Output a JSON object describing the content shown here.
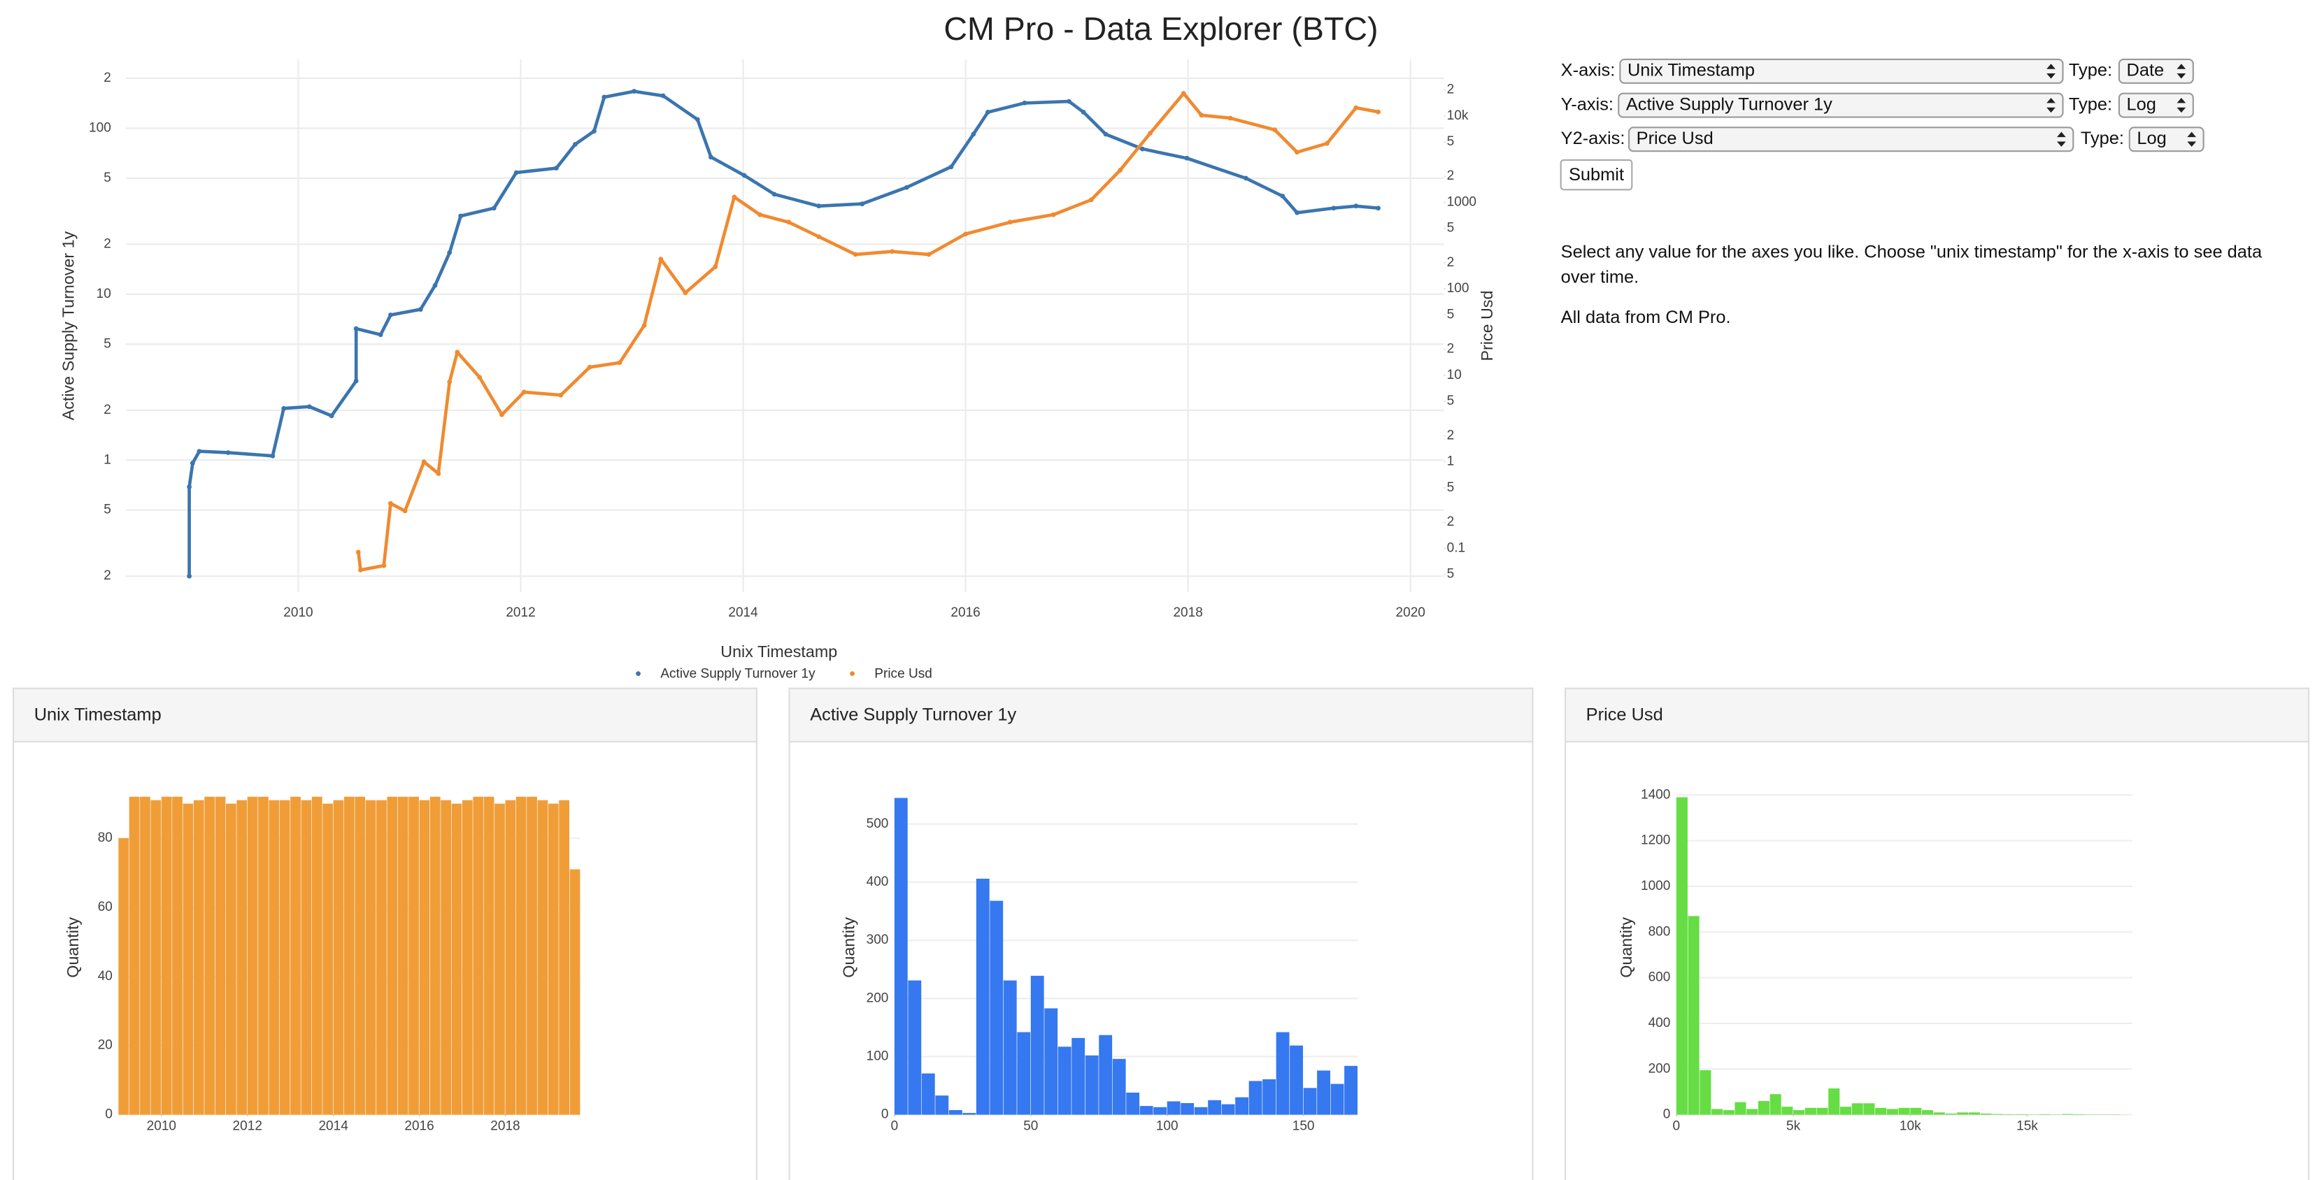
{
  "title": "CM Pro - Data Explorer (BTC)",
  "controls": {
    "x_axis": {
      "label": "X-axis:",
      "value": "Unix Timestamp",
      "type_label": "Type:",
      "type_value": "Date"
    },
    "y_axis": {
      "label": "Y-axis:",
      "value": "Active Supply Turnover 1y",
      "type_label": "Type:",
      "type_value": "Log"
    },
    "y2_axis": {
      "label": "Y2-axis:",
      "value": "Price Usd",
      "type_label": "Type:",
      "type_value": "Log"
    },
    "submit": "Submit",
    "paragraphs": [
      "Select any value for the axes you like. Choose \"unix timestamp\" for the x-axis to see data over time.",
      "All data from CM Pro."
    ]
  },
  "chart_data": [
    {
      "type": "scatter",
      "xlabel": "Unix Timestamp",
      "ylabel": "Active Supply Turnover 1y",
      "y2label": "Price Usd",
      "xlim": [
        2008.45,
        2020.3
      ],
      "xticks": [
        2010,
        2012,
        2014,
        2016,
        2018,
        2020
      ],
      "ylog": true,
      "ylim": [
        0.16,
        260
      ],
      "yticks": [
        {
          "value": 0.2,
          "label": "2"
        },
        {
          "value": 0.5,
          "label": "5"
        },
        1,
        2,
        5,
        10,
        {
          "value": 20,
          "label": "2"
        },
        {
          "value": 50,
          "label": "5"
        },
        100,
        {
          "value": 200,
          "label": "2"
        }
      ],
      "y2log": true,
      "y2lim": [
        0.031,
        45000
      ],
      "y2ticks": [
        {
          "value": 0.05,
          "label": "5"
        },
        0.1,
        {
          "value": 0.2,
          "label": "2"
        },
        {
          "value": 0.5,
          "label": "5"
        },
        1,
        {
          "value": 2,
          "label": "2"
        },
        {
          "value": 5,
          "label": "5"
        },
        10,
        {
          "value": 20,
          "label": "2"
        },
        {
          "value": 50,
          "label": "5"
        },
        100,
        {
          "value": 200,
          "label": "2"
        },
        {
          "value": 500,
          "label": "5"
        },
        1000,
        {
          "value": 2000,
          "label": "2"
        },
        {
          "value": 5000,
          "label": "5"
        },
        {
          "value": 10000,
          "label": "10k"
        },
        {
          "value": 20000,
          "label": "2"
        }
      ],
      "grid": true,
      "series": [
        {
          "name": "Active Supply Turnover 1y",
          "color": "#3b75af",
          "x": [
            2009.02,
            2009.02,
            2009.05,
            2009.11,
            2009.37,
            2009.77,
            2009.87,
            2010.1,
            2010.3,
            2010.52,
            2010.52,
            2010.74,
            2010.83,
            2011.1,
            2011.23,
            2011.36,
            2011.46,
            2011.76,
            2011.96,
            2012.32,
            2012.49,
            2012.66,
            2012.75,
            2013.02,
            2013.28,
            2013.59,
            2013.71,
            2014.01,
            2014.28,
            2014.68,
            2015.07,
            2015.47,
            2015.87,
            2016.07,
            2016.2,
            2016.53,
            2016.93,
            2017.06,
            2017.26,
            2017.59,
            2017.99,
            2018.52,
            2018.85,
            2018.98,
            2019.31,
            2019.51,
            2019.71
          ],
          "values": [
            0.2,
            0.69,
            0.96,
            1.13,
            1.11,
            1.06,
            2.05,
            2.1,
            1.85,
            3.0,
            6.2,
            5.7,
            7.5,
            8.1,
            11.3,
            17.8,
            29.6,
            33,
            54,
            57.5,
            80,
            96,
            154,
            167,
            157,
            113,
            67,
            52,
            40,
            34,
            35,
            44,
            58.5,
            92,
            125,
            142,
            145,
            125,
            92,
            75,
            66,
            50,
            39,
            31,
            33,
            34,
            33
          ]
        },
        {
          "name": "Price Usd",
          "color": "#f08a30",
          "axis": "y2",
          "x": [
            2010.54,
            2010.56,
            2010.77,
            2010.83,
            2010.96,
            2011.13,
            2011.26,
            2011.36,
            2011.43,
            2011.63,
            2011.83,
            2012.03,
            2012.36,
            2012.62,
            2012.89,
            2013.11,
            2013.26,
            2013.48,
            2013.75,
            2013.92,
            2014.15,
            2014.41,
            2014.68,
            2015.01,
            2015.34,
            2015.67,
            2016.0,
            2016.4,
            2016.79,
            2017.13,
            2017.39,
            2017.66,
            2017.96,
            2018.12,
            2018.38,
            2018.78,
            2018.98,
            2019.25,
            2019.51,
            2019.71
          ],
          "values": [
            0.09,
            0.056,
            0.063,
            0.33,
            0.27,
            1,
            0.73,
            8.4,
            18.5,
            9.5,
            3.5,
            6.4,
            5.9,
            12.4,
            14,
            37.6,
            220,
            90,
            180,
            1150,
            720,
            590,
            400,
            250,
            270,
            250,
            430,
            590,
            720,
            1070,
            2350,
            6300,
            18200,
            10200,
            9400,
            6900,
            3800,
            4800,
            12400,
            11100
          ]
        }
      ]
    },
    {
      "type": "histogram",
      "title": "Unix Timestamp",
      "ylabel": "Quantity",
      "color": "#f09d38",
      "bins": [
        2009,
        2009.25,
        2009.5,
        2009.75,
        2010,
        2010.25,
        2010.5,
        2010.75,
        2011,
        2011.25,
        2011.5,
        2011.75,
        2012,
        2012.25,
        2012.5,
        2012.75,
        2013,
        2013.25,
        2013.5,
        2013.75,
        2014,
        2014.25,
        2014.5,
        2014.75,
        2015,
        2015.25,
        2015.5,
        2015.75,
        2016,
        2016.25,
        2016.5,
        2016.75,
        2017,
        2017.25,
        2017.5,
        2017.75,
        2018,
        2018.25,
        2018.5,
        2018.75,
        2019,
        2019.25,
        2019.5,
        2019.75
      ],
      "values": [
        80,
        92,
        92,
        91,
        92,
        92,
        90,
        91,
        92,
        92,
        90,
        91,
        92,
        92,
        91,
        91,
        92,
        91,
        92,
        90,
        91,
        92,
        92,
        91,
        91,
        92,
        92,
        92,
        91,
        92,
        91,
        90,
        91,
        92,
        92,
        90,
        91,
        92,
        92,
        91,
        90,
        91,
        71
      ],
      "xlim": [
        2009,
        2019.75
      ],
      "xticks": [
        2010,
        2012,
        2014,
        2016,
        2018
      ],
      "ylim": [
        0,
        92.5
      ],
      "yticks": [
        0,
        20,
        40,
        60,
        80
      ],
      "grid": true
    },
    {
      "type": "histogram",
      "title": "Active Supply Turnover 1y",
      "ylabel": "Quantity",
      "color": "#3578f0",
      "bins": [
        0,
        5,
        10,
        15,
        20,
        25,
        30,
        35,
        40,
        45,
        50,
        55,
        60,
        65,
        70,
        75,
        80,
        85,
        90,
        95,
        100,
        105,
        110,
        115,
        120,
        125,
        130,
        135,
        140,
        145,
        150,
        155,
        160,
        165,
        170
      ],
      "values": [
        545,
        231,
        71,
        33,
        8,
        3,
        406,
        368,
        231,
        142,
        239,
        183,
        117,
        132,
        102,
        137,
        96,
        38,
        15,
        13,
        23,
        20,
        13,
        25,
        18,
        30,
        58,
        61,
        142,
        119,
        46,
        76,
        53,
        84
      ],
      "xlim": [
        0,
        170
      ],
      "xticks": [
        0,
        50,
        100,
        150
      ],
      "ylim": [
        0,
        550
      ],
      "yticks": [
        0,
        100,
        200,
        300,
        400,
        500
      ],
      "grid": true
    },
    {
      "type": "histogram",
      "title": "Price Usd",
      "ylabel": "Quantity",
      "color": "#66dd44",
      "bins": [
        0,
        500,
        1000,
        1500,
        2000,
        2500,
        3000,
        3500,
        4000,
        4500,
        5000,
        5500,
        6000,
        6500,
        7000,
        7500,
        8000,
        8500,
        9000,
        9500,
        10000,
        10500,
        11000,
        11500,
        12000,
        12500,
        13000,
        13500,
        14000,
        14500,
        15000,
        15500,
        16000,
        16500,
        17000,
        17500,
        18000,
        18500,
        19000,
        19500
      ],
      "values": [
        1390,
        870,
        195,
        25,
        20,
        55,
        25,
        60,
        90,
        35,
        20,
        30,
        30,
        115,
        35,
        50,
        50,
        30,
        25,
        30,
        30,
        20,
        10,
        5,
        10,
        10,
        5,
        3,
        2,
        2,
        1,
        2,
        1,
        3,
        2,
        1,
        1,
        1,
        0
      ],
      "xlim": [
        0,
        19500
      ],
      "xticks": [
        0,
        {
          "value": 5000,
          "label": "5k"
        },
        {
          "value": 10000,
          "label": "10k"
        },
        {
          "value": 15000,
          "label": "15k"
        }
      ],
      "ylim": [
        0,
        1400
      ],
      "yticks": [
        0,
        200,
        400,
        600,
        800,
        1000,
        1200,
        1400
      ],
      "grid": true
    }
  ]
}
